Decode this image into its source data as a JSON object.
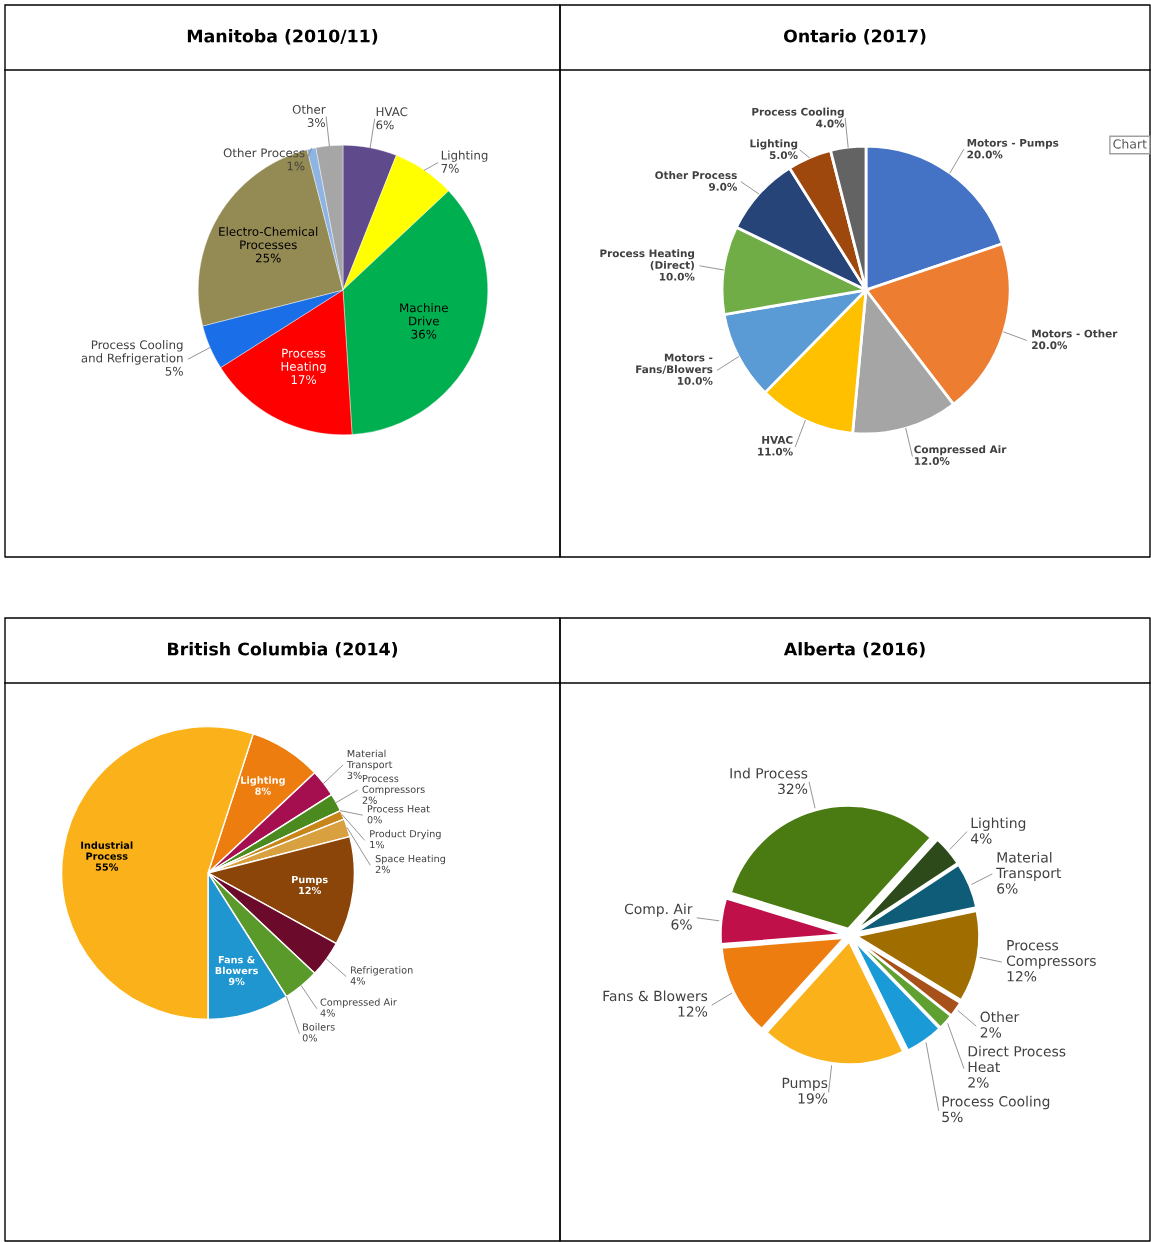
{
  "chart_data": [
    {
      "type": "pie",
      "title": "Manitoba (2010/11)",
      "categories": [
        "HVAC",
        "Lighting",
        "Machine Drive",
        "Process Heating",
        "Process Cooling and Refrigeration",
        "Electro-Chemical Processes",
        "Other Process",
        "Other"
      ],
      "values": [
        6,
        7,
        36,
        17,
        5,
        25,
        1,
        3
      ],
      "value_labels": [
        "6%",
        "7%",
        "36%",
        "17%",
        "5%",
        "25%",
        "1%",
        "3%"
      ],
      "colors": [
        "#5f4b8b",
        "#ffff00",
        "#00b050",
        "#ff0000",
        "#1a6fe8",
        "#948a54",
        "#8eb4e3",
        "#a6a6a6"
      ]
    },
    {
      "type": "pie",
      "title": "Ontario (2017)",
      "categories": [
        "Motors - Pumps",
        "Motors - Other",
        "Compressed Air",
        "HVAC",
        "Motors - Fans/Blowers",
        "Process Heating (Direct)",
        "Other Process",
        "Lighting",
        "Process Cooling"
      ],
      "values": [
        20.0,
        20.0,
        12.0,
        11.0,
        10.0,
        10.0,
        9.0,
        5.0,
        4.0
      ],
      "value_labels": [
        "20.0%",
        "20.0%",
        "12.0%",
        "11.0%",
        "10.0%",
        "10.0%",
        "9.0%",
        "5.0%",
        "4.0%"
      ],
      "colors": [
        "#4472c4",
        "#ed7d31",
        "#a5a5a5",
        "#ffc000",
        "#5b9bd5",
        "#70ad47",
        "#264478",
        "#9e480e",
        "#636363"
      ],
      "annotations": [
        "Chart"
      ]
    },
    {
      "type": "pie",
      "title": "British Columbia (2014)",
      "categories": [
        "Lighting",
        "Material Transport",
        "Process Compressors",
        "Process Heat",
        "Product Drying",
        "Space Heating",
        "Pumps",
        "Refrigeration",
        "Compressed Air",
        "Boilers",
        "Fans & Blowers",
        "Industrial Process"
      ],
      "values": [
        8,
        3,
        2,
        0,
        1,
        2,
        12,
        4,
        4,
        0,
        9,
        55
      ],
      "value_labels": [
        "8%",
        "3%",
        "2%",
        "0%",
        "1%",
        "2%",
        "12%",
        "4%",
        "4%",
        "0%",
        "9%",
        "55%"
      ],
      "colors": [
        "#ed7d0f",
        "#a50f4f",
        "#4a8a1e",
        "#2e5aa8",
        "#c8861a",
        "#d9a040",
        "#8b4509",
        "#6b0a2a",
        "#5a9a2a",
        "#3060a0",
        "#1f96d0",
        "#fbb21a"
      ]
    },
    {
      "type": "pie",
      "title": "Alberta (2016)",
      "categories": [
        "Ind Process",
        "Lighting",
        "Material Transport",
        "Process Compressors",
        "Other",
        "Direct Process Heat",
        "Process Cooling",
        "Pumps",
        "Fans & Blowers",
        "Comp. Air"
      ],
      "values": [
        32,
        4,
        6,
        12,
        2,
        2,
        5,
        19,
        12,
        6
      ],
      "value_labels": [
        "32%",
        "4%",
        "6%",
        "12%",
        "2%",
        "2%",
        "5%",
        "19%",
        "12%",
        "6%"
      ],
      "colors": [
        "#4a7a12",
        "#2d4a1a",
        "#0e5c78",
        "#a06d00",
        "#a8501a",
        "#5fa030",
        "#1a9ad6",
        "#fbb21a",
        "#ed7d0f",
        "#c0104a"
      ]
    }
  ]
}
